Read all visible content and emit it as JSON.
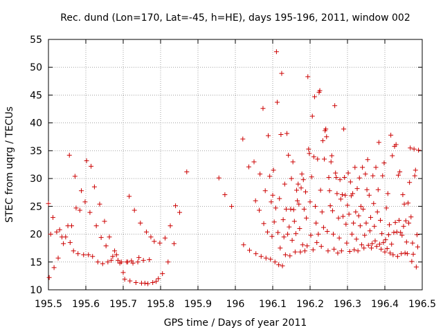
{
  "chart_data": {
    "type": "scatter",
    "title": "Rec. dund (Lon=170, Lat=-45, h=HE), days 195-196, 2011, window 002",
    "xlabel": "GPS time / Days of year 2011",
    "ylabel": "STEC from uqrg / TECUs",
    "xlim": [
      195.5,
      196.5
    ],
    "ylim": [
      10,
      55
    ],
    "grid": true,
    "legend": "none",
    "marker": "+",
    "series_color": "#cc0000",
    "grid_color": "#a0a0a0",
    "xticks": [
      {
        "value": 195.5,
        "label": "195.5"
      },
      {
        "value": 195.6,
        "label": "195.6"
      },
      {
        "value": 195.7,
        "label": "195.7"
      },
      {
        "value": 195.8,
        "label": "195.8"
      },
      {
        "value": 195.9,
        "label": "195.9"
      },
      {
        "value": 196.0,
        "label": "196"
      },
      {
        "value": 196.1,
        "label": "196.1"
      },
      {
        "value": 196.2,
        "label": "196.2"
      },
      {
        "value": 196.3,
        "label": "196.3"
      },
      {
        "value": 196.4,
        "label": "196.4"
      },
      {
        "value": 196.5,
        "label": "196.5"
      }
    ],
    "yticks": [
      {
        "value": 10,
        "label": "10"
      },
      {
        "value": 15,
        "label": "15"
      },
      {
        "value": 20,
        "label": "20"
      },
      {
        "value": 25,
        "label": "25"
      },
      {
        "value": 30,
        "label": "30"
      },
      {
        "value": 35,
        "label": "35"
      },
      {
        "value": 40,
        "label": "40"
      },
      {
        "value": 45,
        "label": "45"
      },
      {
        "value": 50,
        "label": "50"
      },
      {
        "value": 55,
        "label": "55"
      }
    ],
    "points": [
      [
        195.5,
        25.5
      ],
      [
        195.502,
        12.2
      ],
      [
        195.506,
        20.0
      ],
      [
        195.512,
        23.0
      ],
      [
        195.515,
        14.0
      ],
      [
        195.522,
        20.4
      ],
      [
        195.526,
        15.7
      ],
      [
        195.53,
        20.8
      ],
      [
        195.536,
        19.5
      ],
      [
        195.54,
        18.3
      ],
      [
        195.546,
        19.5
      ],
      [
        195.552,
        21.5
      ],
      [
        195.556,
        34.2
      ],
      [
        195.558,
        18.5
      ],
      [
        195.562,
        21.5
      ],
      [
        195.567,
        17.0
      ],
      [
        195.571,
        30.4
      ],
      [
        195.574,
        24.7
      ],
      [
        195.579,
        16.5
      ],
      [
        195.584,
        24.3
      ],
      [
        195.588,
        27.8
      ],
      [
        195.594,
        16.3
      ],
      [
        195.598,
        25.8
      ],
      [
        195.602,
        33.2
      ],
      [
        195.607,
        16.3
      ],
      [
        195.611,
        23.9
      ],
      [
        195.614,
        32.2
      ],
      [
        195.618,
        16.0
      ],
      [
        195.623,
        28.5
      ],
      [
        195.628,
        21.5
      ],
      [
        195.632,
        15.0
      ],
      [
        195.637,
        25.4
      ],
      [
        195.641,
        19.4
      ],
      [
        195.645,
        14.7
      ],
      [
        195.65,
        22.3
      ],
      [
        195.654,
        17.9
      ],
      [
        195.659,
        15.0
      ],
      [
        195.663,
        19.5
      ],
      [
        195.668,
        15.3
      ],
      [
        195.672,
        16.0
      ],
      [
        195.677,
        17.0
      ],
      [
        195.682,
        16.3
      ],
      [
        195.686,
        15.3
      ],
      [
        195.691,
        14.8
      ],
      [
        195.695,
        15.0
      ],
      [
        195.7,
        13.1
      ],
      [
        195.704,
        11.9
      ],
      [
        195.709,
        15.0
      ],
      [
        195.712,
        15.0
      ],
      [
        195.716,
        26.8
      ],
      [
        195.718,
        11.6
      ],
      [
        195.722,
        15.2
      ],
      [
        195.726,
        14.8
      ],
      [
        195.73,
        24.3
      ],
      [
        195.734,
        11.3
      ],
      [
        195.739,
        15.0
      ],
      [
        195.742,
        15.8
      ],
      [
        195.746,
        22.0
      ],
      [
        195.749,
        11.2
      ],
      [
        195.754,
        15.3
      ],
      [
        195.758,
        11.2
      ],
      [
        195.762,
        20.4
      ],
      [
        195.766,
        11.1
      ],
      [
        195.77,
        15.4
      ],
      [
        195.774,
        19.5
      ],
      [
        195.779,
        11.3
      ],
      [
        195.783,
        18.7
      ],
      [
        195.788,
        11.5
      ],
      [
        195.794,
        12.0
      ],
      [
        195.798,
        18.4
      ],
      [
        195.805,
        12.9
      ],
      [
        195.812,
        19.3
      ],
      [
        195.82,
        15.0
      ],
      [
        195.826,
        21.5
      ],
      [
        195.836,
        18.3
      ],
      [
        195.84,
        25.1
      ],
      [
        195.851,
        23.9
      ],
      [
        195.87,
        31.2
      ],
      [
        195.956,
        30.1
      ],
      [
        195.972,
        27.1
      ],
      [
        195.99,
        25.0
      ],
      [
        196.02,
        37.1
      ],
      [
        196.022,
        18.1
      ],
      [
        196.036,
        32.1
      ],
      [
        196.038,
        17.1
      ],
      [
        196.05,
        33.0
      ],
      [
        196.054,
        26.0
      ],
      [
        196.055,
        16.5
      ],
      [
        196.064,
        24.3
      ],
      [
        196.066,
        30.8
      ],
      [
        196.069,
        16.0
      ],
      [
        196.074,
        42.6
      ],
      [
        196.076,
        21.9
      ],
      [
        196.08,
        27.8
      ],
      [
        196.082,
        15.7
      ],
      [
        196.086,
        20.4
      ],
      [
        196.088,
        37.7
      ],
      [
        196.092,
        30.4
      ],
      [
        196.094,
        15.5
      ],
      [
        196.096,
        25.8
      ],
      [
        196.098,
        19.6
      ],
      [
        196.1,
        27.0
      ],
      [
        196.102,
        31.5
      ],
      [
        196.104,
        22.2
      ],
      [
        196.106,
        15.0
      ],
      [
        196.108,
        24.7
      ],
      [
        196.11,
        52.8
      ],
      [
        196.112,
        43.7
      ],
      [
        196.114,
        20.3
      ],
      [
        196.116,
        14.5
      ],
      [
        196.118,
        26.4
      ],
      [
        196.12,
        17.5
      ],
      [
        196.122,
        37.9
      ],
      [
        196.124,
        48.9
      ],
      [
        196.126,
        14.3
      ],
      [
        196.128,
        22.6
      ],
      [
        196.13,
        19.5
      ],
      [
        196.132,
        29.0
      ],
      [
        196.134,
        16.3
      ],
      [
        196.136,
        24.5
      ],
      [
        196.138,
        38.1
      ],
      [
        196.14,
        20.0
      ],
      [
        196.142,
        34.2
      ],
      [
        196.144,
        21.3
      ],
      [
        196.146,
        16.1
      ],
      [
        196.148,
        24.5
      ],
      [
        196.15,
        30.0
      ],
      [
        196.152,
        18.9
      ],
      [
        196.154,
        33.0
      ],
      [
        196.156,
        24.4
      ],
      [
        196.158,
        22.3
      ],
      [
        196.16,
        16.8
      ],
      [
        196.162,
        20.1
      ],
      [
        196.164,
        27.9
      ],
      [
        196.166,
        26.0
      ],
      [
        196.168,
        29.0
      ],
      [
        196.17,
        25.4
      ],
      [
        196.172,
        21.0
      ],
      [
        196.174,
        16.8
      ],
      [
        196.176,
        28.3
      ],
      [
        196.178,
        30.8
      ],
      [
        196.18,
        18.1
      ],
      [
        196.182,
        29.8
      ],
      [
        196.184,
        24.5
      ],
      [
        196.186,
        17.0
      ],
      [
        196.188,
        27.6
      ],
      [
        196.19,
        22.9
      ],
      [
        196.192,
        17.9
      ],
      [
        196.194,
        48.3
      ],
      [
        196.196,
        35.3
      ],
      [
        196.198,
        34.5
      ],
      [
        196.2,
        25.8
      ],
      [
        196.202,
        19.8
      ],
      [
        196.204,
        30.3
      ],
      [
        196.206,
        41.2
      ],
      [
        196.208,
        17.2
      ],
      [
        196.21,
        33.9
      ],
      [
        196.212,
        44.7
      ],
      [
        196.214,
        25.0
      ],
      [
        196.216,
        22.0
      ],
      [
        196.218,
        18.5
      ],
      [
        196.22,
        33.5
      ],
      [
        196.222,
        20.0
      ],
      [
        196.224,
        45.5
      ],
      [
        196.226,
        45.8
      ],
      [
        196.228,
        27.9
      ],
      [
        196.23,
        17.8
      ],
      [
        196.232,
        24.0
      ],
      [
        196.234,
        36.8
      ],
      [
        196.236,
        21.2
      ],
      [
        196.238,
        33.5
      ],
      [
        196.24,
        38.6
      ],
      [
        196.242,
        38.9
      ],
      [
        196.244,
        37.5
      ],
      [
        196.246,
        20.5
      ],
      [
        196.248,
        17.0
      ],
      [
        196.25,
        30.2
      ],
      [
        196.252,
        27.8
      ],
      [
        196.254,
        25.1
      ],
      [
        196.256,
        33.0
      ],
      [
        196.258,
        34.1
      ],
      [
        196.26,
        24.2
      ],
      [
        196.262,
        20.0
      ],
      [
        196.264,
        17.3
      ],
      [
        196.266,
        43.1
      ],
      [
        196.268,
        31.0
      ],
      [
        196.27,
        30.2
      ],
      [
        196.272,
        27.3
      ],
      [
        196.274,
        16.6
      ],
      [
        196.276,
        22.9
      ],
      [
        196.278,
        19.3
      ],
      [
        196.28,
        29.8
      ],
      [
        196.282,
        26.3
      ],
      [
        196.284,
        17.0
      ],
      [
        196.286,
        27.1
      ],
      [
        196.288,
        23.2
      ],
      [
        196.29,
        38.9
      ],
      [
        196.292,
        30.2
      ],
      [
        196.294,
        27.0
      ],
      [
        196.296,
        21.8
      ],
      [
        196.298,
        18.4
      ],
      [
        196.3,
        25.2
      ],
      [
        196.302,
        31.0
      ],
      [
        196.304,
        23.6
      ],
      [
        196.306,
        16.9
      ],
      [
        196.308,
        29.4
      ],
      [
        196.31,
        26.9
      ],
      [
        196.312,
        20.0
      ],
      [
        196.314,
        27.3
      ],
      [
        196.316,
        22.0
      ],
      [
        196.318,
        17.2
      ],
      [
        196.32,
        32.0
      ],
      [
        196.322,
        24.0
      ],
      [
        196.324,
        19.1
      ],
      [
        196.326,
        28.2
      ],
      [
        196.328,
        17.0
      ],
      [
        196.33,
        23.3
      ],
      [
        196.332,
        30.1
      ],
      [
        196.334,
        21.5
      ],
      [
        196.336,
        25.0
      ],
      [
        196.338,
        18.1
      ],
      [
        196.34,
        32.0
      ],
      [
        196.342,
        24.5
      ],
      [
        196.344,
        17.5
      ],
      [
        196.346,
        19.8
      ],
      [
        196.348,
        30.8
      ],
      [
        196.35,
        22.0
      ],
      [
        196.352,
        28.0
      ],
      [
        196.354,
        33.4
      ],
      [
        196.356,
        18.0
      ],
      [
        196.358,
        27.0
      ],
      [
        196.36,
        20.6
      ],
      [
        196.362,
        23.0
      ],
      [
        196.364,
        17.5
      ],
      [
        196.366,
        18.3
      ],
      [
        196.368,
        30.5
      ],
      [
        196.37,
        25.5
      ],
      [
        196.372,
        21.4
      ],
      [
        196.374,
        18.8
      ],
      [
        196.376,
        32.0
      ],
      [
        196.378,
        17.8
      ],
      [
        196.38,
        24.0
      ],
      [
        196.382,
        28.0
      ],
      [
        196.384,
        36.5
      ],
      [
        196.386,
        18.2
      ],
      [
        196.388,
        22.5
      ],
      [
        196.39,
        17.3
      ],
      [
        196.392,
        20.1
      ],
      [
        196.394,
        30.5
      ],
      [
        196.396,
        18.5
      ],
      [
        196.398,
        32.8
      ],
      [
        196.4,
        16.8
      ],
      [
        196.402,
        19.0
      ],
      [
        196.404,
        24.7
      ],
      [
        196.406,
        17.4
      ],
      [
        196.408,
        27.3
      ],
      [
        196.41,
        19.9
      ],
      [
        196.412,
        21.7
      ],
      [
        196.414,
        16.6
      ],
      [
        196.416,
        37.8
      ],
      [
        196.418,
        18.2
      ],
      [
        196.42,
        34.1
      ],
      [
        196.422,
        16.3
      ],
      [
        196.424,
        20.3
      ],
      [
        196.426,
        35.8
      ],
      [
        196.428,
        22.1
      ],
      [
        196.43,
        36.1
      ],
      [
        196.432,
        20.4
      ],
      [
        196.434,
        16.0
      ],
      [
        196.436,
        30.6
      ],
      [
        196.438,
        22.5
      ],
      [
        196.44,
        31.2
      ],
      [
        196.442,
        20.3
      ],
      [
        196.444,
        16.5
      ],
      [
        196.446,
        19.8
      ],
      [
        196.448,
        27.1
      ],
      [
        196.45,
        21.4
      ],
      [
        196.452,
        25.4
      ],
      [
        196.454,
        16.6
      ],
      [
        196.456,
        22.4
      ],
      [
        196.458,
        18.6
      ],
      [
        196.46,
        16.5
      ],
      [
        196.462,
        25.6
      ],
      [
        196.464,
        22.0
      ],
      [
        196.466,
        29.3
      ],
      [
        196.468,
        35.5
      ],
      [
        196.47,
        23.1
      ],
      [
        196.472,
        15.1
      ],
      [
        196.474,
        18.4
      ],
      [
        196.476,
        16.4
      ],
      [
        196.478,
        35.3
      ],
      [
        196.48,
        30.5
      ],
      [
        196.482,
        31.5
      ],
      [
        196.484,
        14.1
      ],
      [
        196.486,
        19.9
      ],
      [
        196.488,
        17.7
      ],
      [
        196.49,
        35.1
      ]
    ]
  }
}
